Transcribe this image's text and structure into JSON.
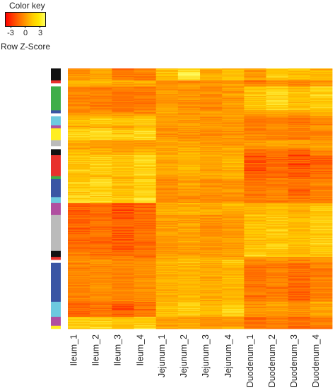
{
  "color_key": {
    "title": "Color key",
    "subtitle": "Row Z-Score",
    "ticks": [
      "-3",
      "0",
      "3"
    ],
    "tick_values": [
      -3,
      0,
      3
    ],
    "range": [
      -3.5,
      3.5
    ],
    "colors": [
      "#ff0000",
      "#ff6600",
      "#ff9900",
      "#ffcc00",
      "#ffff66"
    ]
  },
  "chart_data": {
    "type": "heatmap",
    "title": "",
    "columns": [
      "Ileum_1",
      "Ileum_2",
      "Ileum_3",
      "Ileum_4",
      "Jejunum_1",
      "Jejunum_2",
      "Jejunum_3",
      "Jejunum_4",
      "Duodenum_1",
      "Duodenum_2",
      "Duodenum_3",
      "Duodenum_4"
    ],
    "row_clusters": [
      {
        "color": "#111111",
        "rows": 4,
        "z": [
          -0.4,
          0.4,
          -1.2,
          -0.8,
          1.4,
          2.6,
          0.6,
          1.2,
          0.2,
          1.6,
          1.2,
          0.8
        ]
      },
      {
        "color": "#e8312c",
        "rows": 1,
        "z": [
          1.6,
          1.2,
          1.0,
          1.4,
          -0.8,
          -1.0,
          -0.4,
          -0.6,
          -1.2,
          -0.8,
          -1.0,
          -0.6
        ]
      },
      {
        "color": "#ffffff",
        "rows": 1,
        "z": [
          0.6,
          0.4,
          0.2,
          0.6,
          0.0,
          0.2,
          -0.2,
          0.2,
          -0.4,
          -0.2,
          -0.4,
          0.0
        ]
      },
      {
        "color": "#3fae49",
        "rows": 8,
        "z": [
          -0.6,
          -0.8,
          -1.2,
          -1.0,
          0.0,
          -0.2,
          -0.4,
          0.0,
          1.6,
          2.0,
          1.4,
          1.8
        ]
      },
      {
        "color": "#3a55a4",
        "rows": 1,
        "z": [
          -0.2,
          -0.4,
          -0.6,
          -0.4,
          0.2,
          0.0,
          0.2,
          0.4,
          0.6,
          0.8,
          0.6,
          0.8
        ]
      },
      {
        "color": "#ffffff",
        "rows": 1,
        "z": [
          0.4,
          0.2,
          0.0,
          0.2,
          0.4,
          0.2,
          0.0,
          0.2,
          0.2,
          0.4,
          0.2,
          0.6
        ]
      },
      {
        "color": "#6dcadf",
        "rows": 3,
        "z": [
          1.4,
          1.6,
          1.2,
          1.8,
          0.0,
          0.2,
          -0.4,
          0.0,
          -1.0,
          -0.6,
          -1.2,
          -0.6
        ]
      },
      {
        "color": "#b04fa0",
        "rows": 1,
        "z": [
          0.6,
          0.4,
          0.4,
          0.8,
          -0.2,
          0.0,
          -0.2,
          0.0,
          -0.6,
          -0.4,
          -0.6,
          -0.2
        ]
      },
      {
        "color": "#ffee22",
        "rows": 4,
        "z": [
          1.8,
          2.0,
          1.6,
          2.2,
          -0.2,
          0.0,
          -0.6,
          -0.2,
          -0.8,
          -0.6,
          -1.0,
          -0.4
        ]
      },
      {
        "color": "#bbbbbb",
        "rows": 2,
        "z": [
          0.4,
          0.2,
          0.0,
          0.2,
          0.4,
          0.2,
          0.2,
          0.0,
          0.2,
          0.4,
          0.0,
          0.2
        ]
      },
      {
        "color": "#ffffff",
        "rows": 1,
        "z": [
          0.2,
          0.0,
          -0.2,
          0.2,
          0.6,
          0.4,
          0.2,
          0.4,
          -0.2,
          0.0,
          -0.2,
          0.2
        ]
      },
      {
        "color": "#111111",
        "rows": 2,
        "z": [
          1.0,
          0.8,
          0.6,
          1.0,
          0.6,
          0.8,
          0.2,
          0.6,
          -1.2,
          -1.0,
          -1.4,
          -0.8
        ]
      },
      {
        "color": "#e8312c",
        "rows": 7,
        "z": [
          1.6,
          1.8,
          1.4,
          2.0,
          0.6,
          0.8,
          0.4,
          0.8,
          -1.8,
          -1.6,
          -2.0,
          -1.6
        ]
      },
      {
        "color": "#3fae49",
        "rows": 1,
        "z": [
          1.2,
          1.4,
          1.0,
          1.6,
          0.4,
          0.6,
          0.2,
          0.6,
          -1.4,
          -1.2,
          -1.6,
          -1.2
        ]
      },
      {
        "color": "#3a55a4",
        "rows": 6,
        "z": [
          1.8,
          2.0,
          1.4,
          2.0,
          -0.2,
          0.2,
          -0.4,
          0.0,
          -1.2,
          -1.0,
          -1.4,
          -0.8
        ]
      },
      {
        "color": "#6dcadf",
        "rows": 2,
        "z": [
          2.2,
          2.4,
          1.8,
          2.4,
          -0.4,
          -0.2,
          -0.8,
          -0.4,
          -1.0,
          -0.8,
          -1.2,
          -0.8
        ]
      },
      {
        "color": "#b04fa0",
        "rows": 4,
        "z": [
          -1.8,
          -1.6,
          -2.0,
          -1.6,
          0.6,
          0.8,
          0.4,
          0.8,
          1.0,
          1.2,
          0.8,
          1.4
        ]
      },
      {
        "color": "#bbbbbb",
        "rows": 12,
        "z": [
          -1.6,
          -1.4,
          -1.8,
          -1.4,
          0.0,
          0.4,
          -0.2,
          0.2,
          1.4,
          1.6,
          1.2,
          1.8
        ]
      },
      {
        "color": "#111111",
        "rows": 2,
        "z": [
          -1.0,
          -1.2,
          -1.4,
          -1.2,
          0.2,
          0.4,
          -0.2,
          0.2,
          1.8,
          1.4,
          1.2,
          1.6
        ]
      },
      {
        "color": "#e8312c",
        "rows": 1,
        "z": [
          -0.8,
          -0.6,
          -1.0,
          -0.8,
          0.8,
          1.0,
          0.6,
          1.0,
          -0.4,
          -0.2,
          -0.6,
          -0.2
        ]
      },
      {
        "color": "#ffffff",
        "rows": 1,
        "z": [
          -0.4,
          -0.2,
          -0.6,
          -0.4,
          1.2,
          1.6,
          1.0,
          1.8,
          -0.6,
          -0.2,
          -0.6,
          -0.2
        ]
      },
      {
        "color": "#3a55a4",
        "rows": 13,
        "z": [
          -0.6,
          -0.4,
          -0.8,
          -0.4,
          0.8,
          1.0,
          0.6,
          1.0,
          -1.2,
          -1.0,
          -1.4,
          -0.8
        ]
      },
      {
        "color": "#6dcadf",
        "rows": 5,
        "z": [
          -1.6,
          -1.2,
          -2.0,
          -1.4,
          1.4,
          1.8,
          1.2,
          1.8,
          -0.2,
          0.2,
          -0.2,
          0.4
        ]
      },
      {
        "color": "#b04fa0",
        "rows": 3,
        "z": [
          1.6,
          1.8,
          1.4,
          2.0,
          0.0,
          0.2,
          -0.4,
          0.0,
          -1.2,
          -1.0,
          -1.4,
          -0.8
        ]
      },
      {
        "color": "#ffee22",
        "rows": 1,
        "z": [
          1.8,
          2.0,
          1.6,
          2.0,
          0.4,
          0.6,
          0.2,
          0.6,
          -1.4,
          -1.2,
          -1.6,
          -1.0
        ]
      }
    ]
  }
}
